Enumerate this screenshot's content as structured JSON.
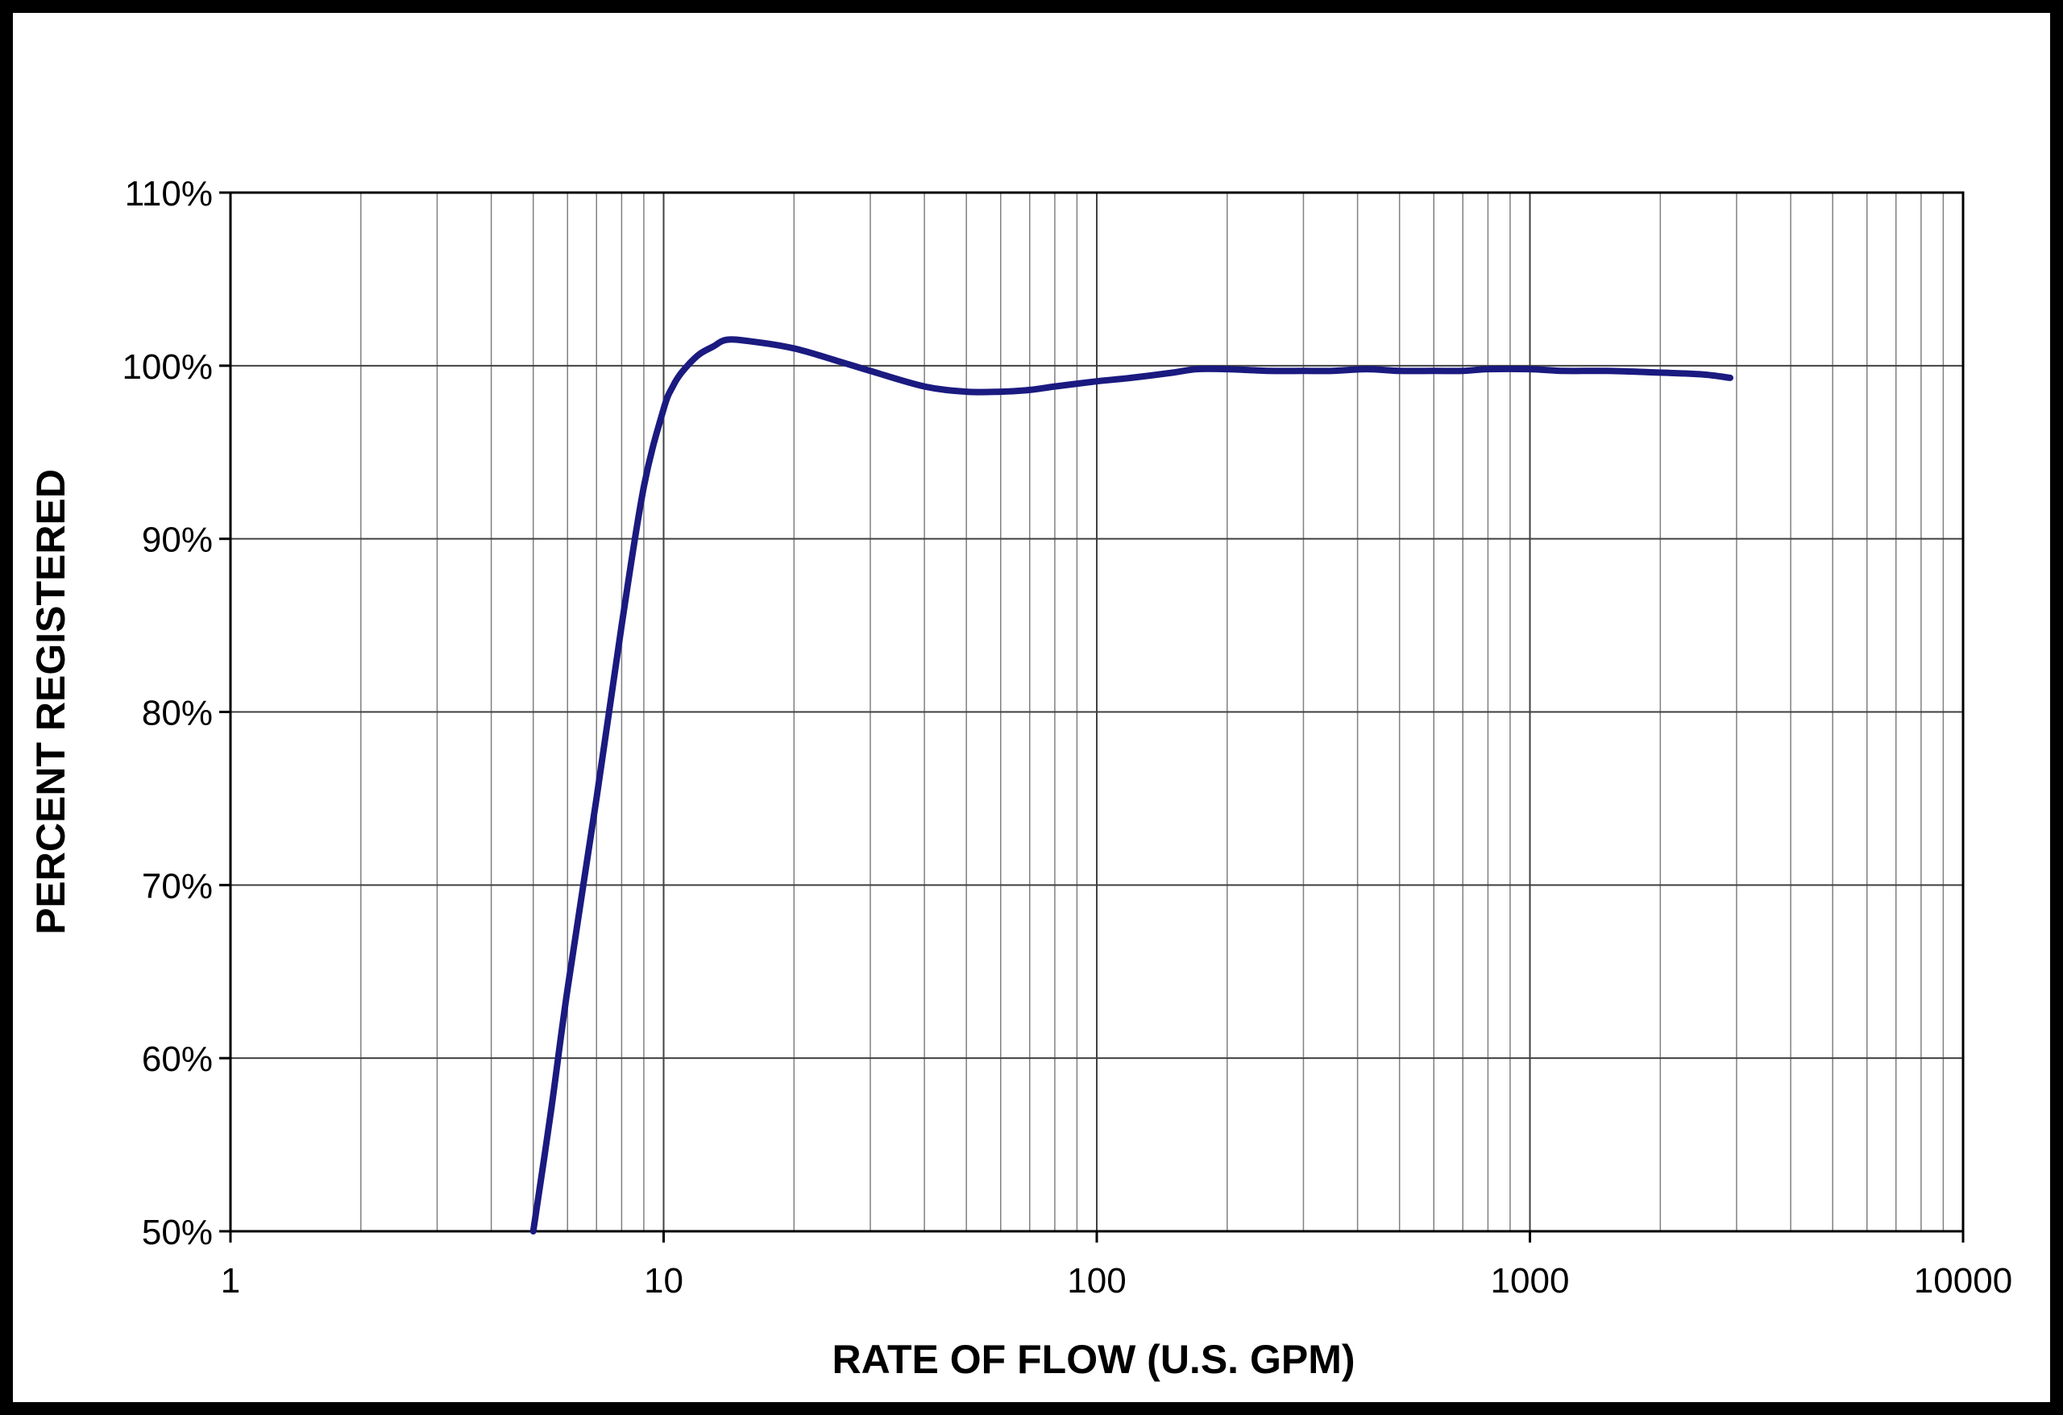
{
  "chart_data": {
    "type": "line",
    "title": "",
    "xlabel": "RATE OF FLOW (U.S. GPM)",
    "ylabel": "PERCENT REGISTERED",
    "x_scale": "log",
    "xlim": [
      1,
      10000
    ],
    "ylim": [
      50,
      110
    ],
    "x_ticks": [
      1,
      10,
      100,
      1000,
      10000
    ],
    "x_tick_labels": [
      "1",
      "10",
      "100",
      "1000",
      "10000"
    ],
    "y_ticks": [
      50,
      60,
      70,
      80,
      90,
      100,
      110
    ],
    "y_tick_labels": [
      "50%",
      "60%",
      "70%",
      "80%",
      "90%",
      "100%",
      "110%"
    ],
    "grid": true,
    "legend": "none",
    "line_color": "#1a1a80",
    "series": [
      {
        "x": [
          5,
          5.5,
          6,
          7,
          8,
          9,
          10,
          10.5,
          11,
          12,
          13,
          14,
          16,
          20,
          25,
          30,
          40,
          50,
          60,
          70,
          80,
          100,
          120,
          150,
          170,
          200,
          250,
          300,
          350,
          420,
          500,
          600,
          700,
          800,
          1000,
          1200,
          1500,
          2000,
          2500,
          2900
        ],
        "y": [
          50,
          57,
          64,
          75,
          85,
          93,
          97.5,
          98.8,
          99.6,
          100.6,
          101.1,
          101.5,
          101.4,
          101,
          100.3,
          99.7,
          98.8,
          98.5,
          98.5,
          98.6,
          98.8,
          99.1,
          99.3,
          99.6,
          99.8,
          99.8,
          99.7,
          99.7,
          99.7,
          99.8,
          99.7,
          99.7,
          99.7,
          99.8,
          99.8,
          99.7,
          99.7,
          99.6,
          99.5,
          99.3
        ]
      }
    ]
  }
}
